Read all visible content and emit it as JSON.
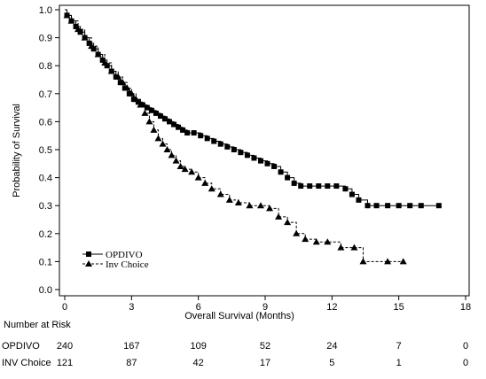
{
  "chart_data": {
    "type": "line",
    "subtype": "kaplan-meier",
    "xlabel": "Overall Survival (Months)",
    "ylabel": "Probability of Survival",
    "xlim": [
      0,
      18
    ],
    "ylim": [
      0.0,
      1.0
    ],
    "xticks": [
      "0",
      "3",
      "6",
      "9",
      "12",
      "15",
      "18"
    ],
    "yticks": [
      "0.0",
      "0.1",
      "0.2",
      "0.3",
      "0.4",
      "0.5",
      "0.6",
      "0.7",
      "0.8",
      "0.9",
      "1.0"
    ],
    "grid": false,
    "legend_position": "bottom-left",
    "series": [
      {
        "name": "OPDIVO",
        "line_style": "solid",
        "marker": "square",
        "x": [
          0,
          0.1,
          0.3,
          0.5,
          0.7,
          0.9,
          1.1,
          1.3,
          1.5,
          1.7,
          1.9,
          2.1,
          2.3,
          2.5,
          2.7,
          2.9,
          3.1,
          3.3,
          3.5,
          3.7,
          3.9,
          4.1,
          4.3,
          4.5,
          4.7,
          4.9,
          5.1,
          5.3,
          5.5,
          5.8,
          6.1,
          6.4,
          6.7,
          7.0,
          7.3,
          7.6,
          7.9,
          8.2,
          8.5,
          8.8,
          9.1,
          9.4,
          9.7,
          10.0,
          10.3,
          10.6,
          11.0,
          11.4,
          11.8,
          12.2,
          12.6,
          12.9,
          13.2,
          13.6,
          14.0,
          14.5,
          15.0,
          15.5,
          16.0,
          16.8
        ],
        "y": [
          1.0,
          0.98,
          0.96,
          0.94,
          0.92,
          0.9,
          0.88,
          0.86,
          0.84,
          0.82,
          0.8,
          0.78,
          0.76,
          0.74,
          0.72,
          0.7,
          0.68,
          0.67,
          0.66,
          0.65,
          0.64,
          0.63,
          0.62,
          0.61,
          0.6,
          0.59,
          0.58,
          0.57,
          0.56,
          0.56,
          0.55,
          0.54,
          0.53,
          0.52,
          0.51,
          0.5,
          0.49,
          0.48,
          0.47,
          0.46,
          0.45,
          0.44,
          0.42,
          0.4,
          0.38,
          0.37,
          0.37,
          0.37,
          0.37,
          0.37,
          0.36,
          0.34,
          0.32,
          0.3,
          0.3,
          0.3,
          0.3,
          0.3,
          0.3,
          0.3
        ]
      },
      {
        "name": "Inv Choice",
        "line_style": "dashed",
        "marker": "triangle",
        "x": [
          0,
          0.1,
          0.3,
          0.6,
          0.9,
          1.2,
          1.5,
          1.8,
          2.1,
          2.4,
          2.6,
          2.8,
          3.0,
          3.2,
          3.4,
          3.6,
          3.8,
          4.0,
          4.2,
          4.4,
          4.6,
          4.8,
          5.0,
          5.2,
          5.4,
          5.7,
          6.0,
          6.3,
          6.6,
          7.0,
          7.4,
          7.8,
          8.3,
          8.8,
          9.2,
          9.6,
          10.0,
          10.4,
          10.8,
          11.3,
          11.8,
          12.4,
          13.0,
          13.4,
          14.5,
          15.2
        ],
        "y": [
          1.0,
          0.98,
          0.96,
          0.93,
          0.9,
          0.87,
          0.84,
          0.81,
          0.78,
          0.76,
          0.74,
          0.72,
          0.7,
          0.68,
          0.66,
          0.63,
          0.6,
          0.57,
          0.54,
          0.52,
          0.5,
          0.48,
          0.46,
          0.44,
          0.43,
          0.42,
          0.4,
          0.38,
          0.36,
          0.34,
          0.32,
          0.31,
          0.3,
          0.3,
          0.29,
          0.26,
          0.24,
          0.2,
          0.18,
          0.17,
          0.17,
          0.15,
          0.15,
          0.1,
          0.1,
          0.1
        ]
      }
    ],
    "risk_table": {
      "title": "Number at Risk",
      "rows": [
        {
          "label": "OPDIVO",
          "counts": [
            "240",
            "167",
            "109",
            "52",
            "24",
            "7",
            "0"
          ]
        },
        {
          "label": "INV Choice",
          "counts": [
            "121",
            "87",
            "42",
            "17",
            "5",
            "1",
            "0"
          ]
        }
      ]
    }
  }
}
